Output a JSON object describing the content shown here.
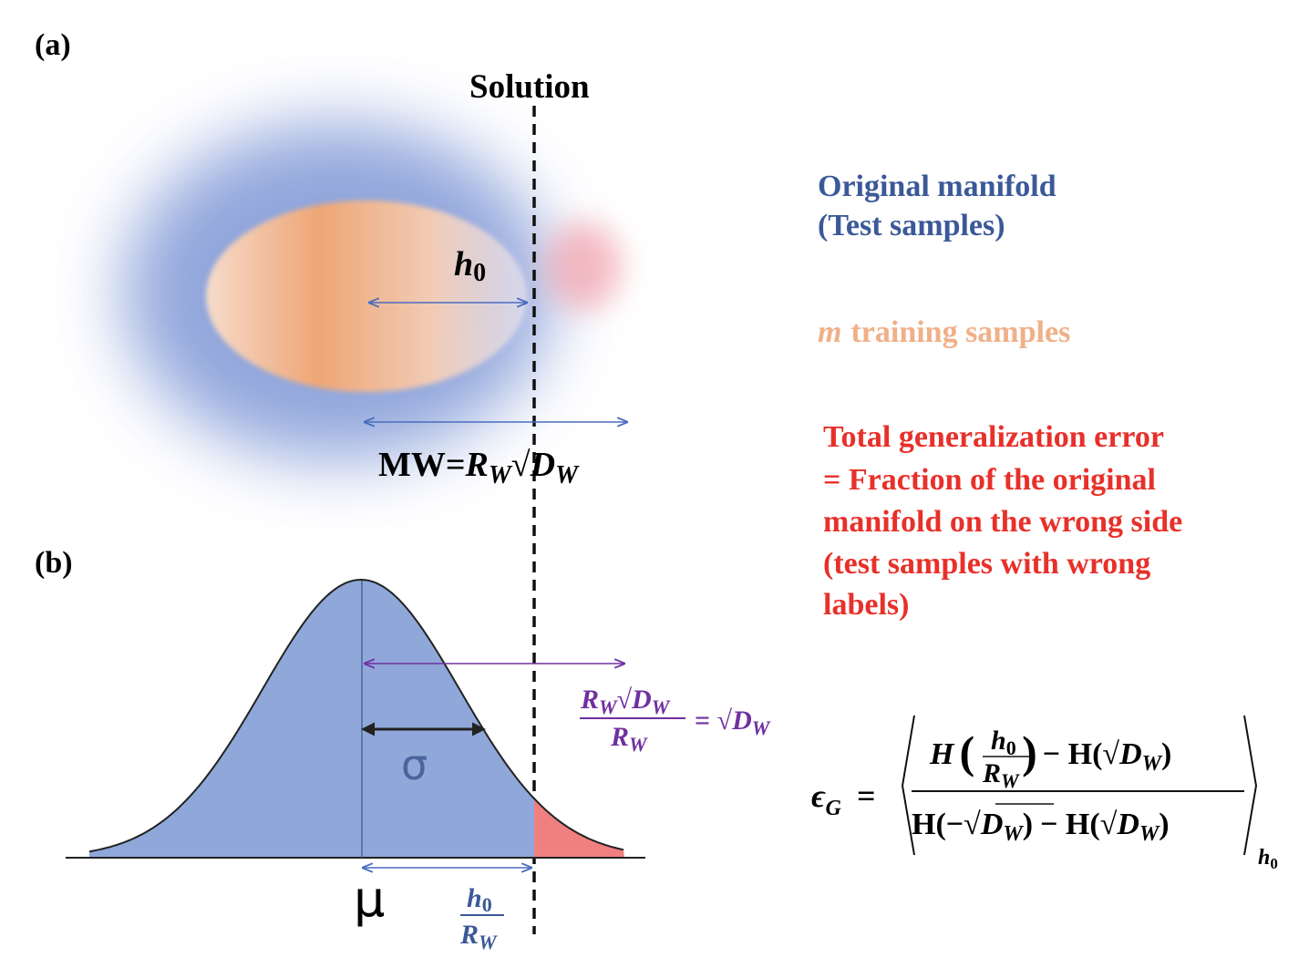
{
  "panel_a": {
    "label": "(a)",
    "solution_label": "Solution",
    "h0": {
      "symbol": "h",
      "subscript": "0"
    },
    "margin_width": {
      "lhs": "MW=",
      "radius": "R",
      "radius_sub": "W",
      "root": "√",
      "dim": "D",
      "dim_sub": "W"
    }
  },
  "legend": {
    "original_manifold": [
      "Original manifold",
      "(Test samples)"
    ],
    "training": {
      "variable": "m",
      "text": "training samples"
    },
    "error": [
      "Total generalization error",
      "= Fraction of the original",
      "manifold on the wrong side",
      "(test samples with wrong",
      "labels)"
    ]
  },
  "panel_b": {
    "label": "(b)",
    "sigma": "σ",
    "mu": "μ",
    "offset": {
      "numerator": "h",
      "numerator_sub": "0",
      "denominator": "R",
      "denominator_sub": "W"
    },
    "ratio": {
      "num_r": "R",
      "num_r_sub": "W",
      "num_root": "√",
      "num_d": "D",
      "num_d_sub": "W",
      "den_r": "R",
      "den_r_sub": "W",
      "equals": "= √",
      "rhs_d": "D",
      "rhs_d_sub": "W"
    }
  },
  "formula": {
    "lhs": "ϵ",
    "lhs_sub": "G",
    "equals": "=",
    "numerator": {
      "h_fn": "H",
      "open": "(",
      "frac_num": "h",
      "frac_num_sub": "0",
      "frac_den": "R",
      "frac_den_sub": "W",
      "close": ")",
      "minus": "− H(√",
      "d": "D",
      "d_sub": "W",
      "end": ")"
    },
    "denominator": {
      "start": "H(−",
      "root": "√",
      "d": "D",
      "d_sub": "W",
      "mid": ")",
      "minus": "− H(√",
      "d2": "D",
      "d2_sub": "W",
      "end": ")"
    },
    "average_sub": {
      "symbol": "h",
      "sub": "0"
    }
  }
}
